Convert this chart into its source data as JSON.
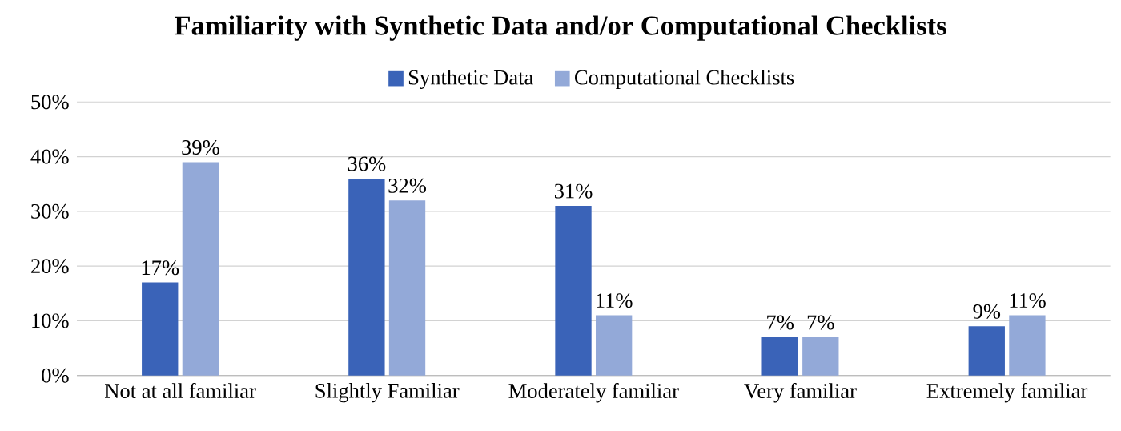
{
  "chart_data": {
    "type": "bar",
    "title": "Familiarity with Synthetic Data and/or Computational Checklists",
    "categories": [
      "Not at all familiar",
      "Slightly Familiar",
      "Moderately familiar",
      "Very familiar",
      "Extremely familiar"
    ],
    "series": [
      {
        "name": "Synthetic Data",
        "color": "#3a63b8",
        "values": [
          17,
          36,
          31,
          7,
          9
        ],
        "value_labels": [
          "17%",
          "36%",
          "31%",
          "7%",
          "9%"
        ]
      },
      {
        "name": "Computational Checklists",
        "color": "#93a9d8",
        "values": [
          39,
          32,
          11,
          7,
          11
        ],
        "value_labels": [
          "39%",
          "32%",
          "11%",
          "7%",
          "11%"
        ]
      }
    ],
    "ylim": [
      0,
      50
    ],
    "yticks": [
      {
        "value": 0,
        "label": "0%"
      },
      {
        "value": 10,
        "label": "10%"
      },
      {
        "value": 20,
        "label": "20%"
      },
      {
        "value": 30,
        "label": "30%"
      },
      {
        "value": 40,
        "label": "40%"
      },
      {
        "value": 50,
        "label": "50%"
      }
    ],
    "grid": "y",
    "legend": "top"
  }
}
